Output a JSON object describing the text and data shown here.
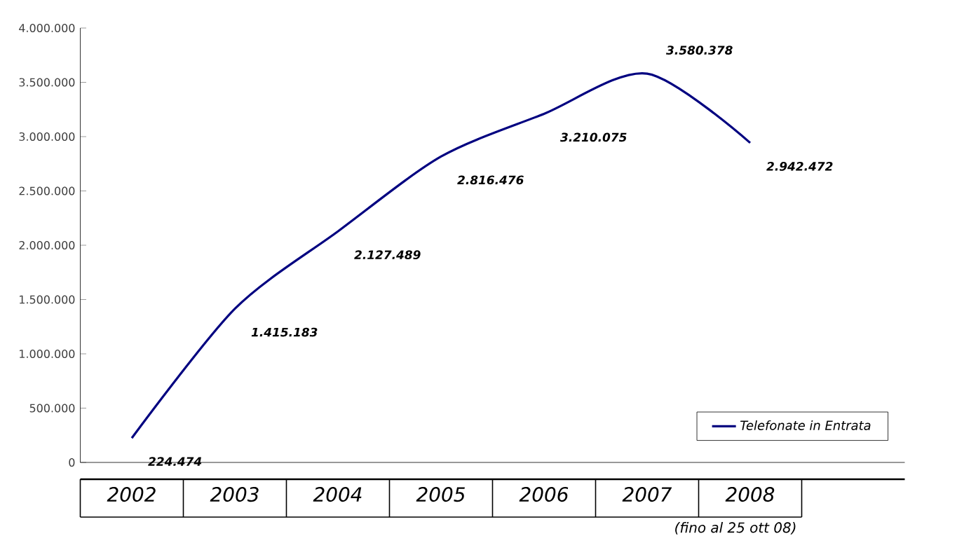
{
  "chart_data": {
    "type": "line",
    "categories": [
      "2002",
      "2003",
      "2004",
      "2005",
      "2006",
      "2007",
      "2008"
    ],
    "series": [
      {
        "name": "Telefonate in Entrata",
        "color": "#000080",
        "values": [
          224474,
          1415183,
          2127489,
          2816476,
          3210075,
          3580378,
          2942472
        ],
        "value_labels": [
          "224.474",
          "1.415.183",
          "2.127.489",
          "2.816.476",
          "3.210.075",
          "3.580.378",
          "2.942.472"
        ]
      }
    ],
    "ylim": [
      0,
      4000000
    ],
    "yticks": [
      0,
      {
        "value": 500000,
        "label": "500.000"
      },
      {
        "value": 1000000,
        "label": "1.000.000"
      },
      {
        "value": 1500000,
        "label": "1.500.000"
      },
      {
        "value": 2000000,
        "label": "2.000.000"
      },
      {
        "value": 2500000,
        "label": "2.500.000"
      },
      {
        "value": 3000000,
        "label": "3.000.000"
      },
      {
        "value": 3500000,
        "label": "3.500.000"
      },
      {
        "value": 4000000,
        "label": "4.000.000"
      }
    ],
    "legend": "bottom right",
    "grid": false,
    "marker": "none",
    "line_style": "solid",
    "annotations": [
      "(fino al 25 ott 08)"
    ]
  }
}
